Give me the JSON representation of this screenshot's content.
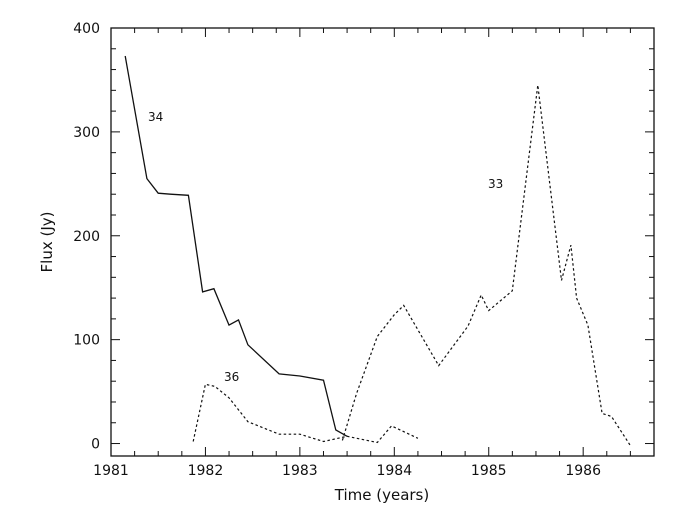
{
  "chart_data": {
    "type": "line",
    "title": "",
    "xlabel": "Time (years)",
    "ylabel": "Flux (Jy)",
    "xlim": [
      1981,
      1986.75
    ],
    "ylim": [
      -12,
      400
    ],
    "x_ticks": [
      "1981",
      "1982",
      "1983",
      "1984",
      "1985",
      "1986"
    ],
    "y_ticks": [
      "0",
      "100",
      "200",
      "300",
      "400"
    ],
    "grid": false,
    "legend": "none",
    "series": [
      {
        "name": "34",
        "style": "solid",
        "x": [
          1981.15,
          1981.38,
          1981.5,
          1981.63,
          1981.82,
          1981.97,
          1982.09,
          1982.25,
          1982.35,
          1982.45,
          1982.78,
          1983.0,
          1983.25,
          1983.38,
          1983.5
        ],
        "y": [
          373,
          255,
          241,
          240,
          239,
          146,
          149,
          114,
          119,
          95,
          67,
          65,
          61,
          13,
          7
        ]
      },
      {
        "name": "36",
        "style": "dotted",
        "x": [
          1981.87,
          1982.0,
          1982.1,
          1982.25,
          1982.45,
          1982.78,
          1983.0,
          1983.25,
          1983.5,
          1983.82,
          1983.97,
          1984.25
        ],
        "y": [
          2,
          57,
          55,
          44,
          21,
          9,
          9,
          2,
          7,
          1,
          17,
          5
        ]
      },
      {
        "name": "33",
        "style": "dotted",
        "x": [
          1983.45,
          1983.6,
          1983.82,
          1984.0,
          1984.1,
          1984.47,
          1984.78,
          1984.92,
          1985.0,
          1985.25,
          1985.52,
          1985.77,
          1985.87,
          1985.93,
          1986.05,
          1986.2,
          1986.3,
          1986.5
        ],
        "y": [
          3,
          48,
          103,
          124,
          133,
          75,
          113,
          143,
          128,
          147,
          345,
          157,
          191,
          140,
          114,
          29,
          26,
          -2
        ]
      }
    ],
    "colors": {
      "axis": "#111111",
      "line": "#111111",
      "background": "#ffffff"
    }
  }
}
